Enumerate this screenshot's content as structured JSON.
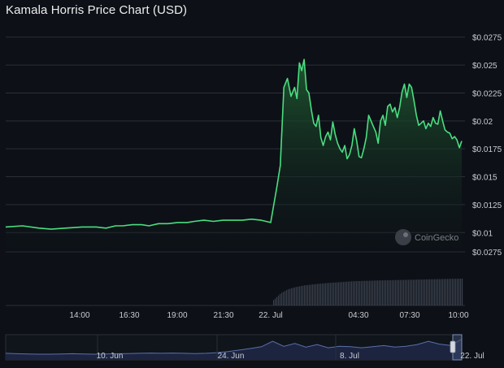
{
  "title": "Kamala Horris Price Chart (USD)",
  "watermark": "CoinGecko",
  "colors": {
    "background": "#0d1117",
    "line": "#4ade80",
    "area_top": "#1f5a30",
    "grid": "#2a2f36",
    "volume": "#3a414c",
    "navigator_line": "#5b6fa8",
    "navigator_fill": "#1c2440"
  },
  "chart_data": [
    {
      "type": "area",
      "title": "Kamala Horris Price Chart (USD)",
      "y_axis": {
        "position": "right",
        "ylim": [
          0.009,
          0.0285
        ],
        "ticks": [
          0.01,
          0.0125,
          0.015,
          0.0175,
          0.02,
          0.0225,
          0.025,
          0.0275
        ],
        "tick_labels": [
          "$0.01",
          "$0.0125",
          "$0.015",
          "$0.0175",
          "$0.02",
          "$0.0225",
          "$0.025",
          "$0.0275"
        ]
      },
      "x_axis": {
        "xlim": [
          10.5,
          29.6
        ],
        "ticks": [
          14.0,
          16.5,
          19.0,
          21.5,
          24.0,
          28.5
        ],
        "tick_labels": [
          "14:00",
          "16:30",
          "19:00",
          "21:30",
          "22. Jul",
          "04:30",
          "07:30",
          "10:00"
        ],
        "tick_label_hours": [
          14.0,
          16.5,
          19.0,
          21.5,
          24.0,
          28.5,
          31.5,
          34.0
        ]
      },
      "grid": true,
      "series": [
        {
          "x": [
            10.5,
            11.2,
            11.9,
            12.4,
            13.0,
            13.7,
            14.3,
            14.7,
            15.1,
            15.4,
            15.8,
            16.2,
            16.5,
            16.9,
            17.3,
            17.7,
            18.1,
            18.4,
            18.8,
            19.2,
            19.6,
            20.0,
            20.4,
            20.8,
            21.2,
            21.6,
            21.85,
            22.0,
            22.15,
            22.3,
            22.45,
            22.6,
            22.7,
            22.8,
            22.9,
            23.0,
            23.1,
            23.2,
            23.3,
            23.4,
            23.5,
            23.6,
            23.7,
            23.8,
            23.9,
            24.0,
            24.1,
            24.2,
            24.3,
            24.4,
            24.5,
            24.6,
            24.7,
            24.8,
            24.9,
            25.0,
            25.1,
            25.2,
            25.3,
            25.4,
            25.5,
            25.6,
            25.7,
            25.8,
            25.9,
            26.0,
            26.1,
            26.2,
            26.3,
            26.4,
            26.5,
            26.6,
            26.7,
            26.8,
            26.9,
            27.0,
            27.1,
            27.2,
            27.3,
            27.4,
            27.5,
            27.6,
            27.7,
            27.8,
            27.9,
            28.0,
            28.1,
            28.2,
            28.3,
            28.4,
            28.5,
            28.6,
            28.7,
            28.8,
            28.9,
            29.0,
            29.1,
            29.2,
            29.3,
            29.4,
            29.5,
            29.6
          ],
          "values": [
            0.0105,
            0.0106,
            0.0104,
            0.0103,
            0.0104,
            0.0105,
            0.0105,
            0.0104,
            0.0106,
            0.0106,
            0.0107,
            0.0107,
            0.0106,
            0.0108,
            0.0108,
            0.0109,
            0.0109,
            0.011,
            0.0111,
            0.011,
            0.0111,
            0.0111,
            0.0111,
            0.0112,
            0.0111,
            0.0109,
            0.014,
            0.016,
            0.023,
            0.0238,
            0.0222,
            0.023,
            0.022,
            0.0252,
            0.0245,
            0.0255,
            0.0228,
            0.0225,
            0.021,
            0.0198,
            0.0195,
            0.0205,
            0.0185,
            0.0178,
            0.0186,
            0.019,
            0.0183,
            0.0199,
            0.0188,
            0.018,
            0.0175,
            0.0172,
            0.0178,
            0.0166,
            0.017,
            0.0178,
            0.0193,
            0.0182,
            0.0168,
            0.0167,
            0.0175,
            0.0185,
            0.0205,
            0.02,
            0.0195,
            0.019,
            0.018,
            0.02,
            0.0205,
            0.0196,
            0.0213,
            0.0215,
            0.0208,
            0.0212,
            0.0203,
            0.0212,
            0.0226,
            0.0233,
            0.0221,
            0.0233,
            0.023,
            0.0218,
            0.0205,
            0.0196,
            0.0198,
            0.02,
            0.0193,
            0.0198,
            0.0195,
            0.0203,
            0.0198,
            0.0197,
            0.0209,
            0.02,
            0.0192,
            0.019,
            0.0189,
            0.0184,
            0.0186,
            0.0183,
            0.0176,
            0.0182
          ]
        }
      ]
    },
    {
      "type": "bar",
      "role": "volume",
      "note_units": "relative",
      "x": [
        21.7,
        22.0,
        22.3,
        22.6,
        23.0,
        23.5,
        24.0,
        24.5,
        25.0,
        26.0,
        27.0,
        28.0,
        29.0,
        29.6
      ],
      "values": [
        0.2,
        0.45,
        0.6,
        0.68,
        0.75,
        0.8,
        0.84,
        0.87,
        0.9,
        0.93,
        0.95,
        0.97,
        0.99,
        1.0
      ]
    },
    {
      "type": "line",
      "role": "navigator",
      "x_tick_labels": [
        "10. Jun",
        "24. Jun",
        "8. Jul",
        "22. Jul"
      ],
      "values": [
        0.3,
        0.28,
        0.27,
        0.26,
        0.26,
        0.27,
        0.28,
        0.27,
        0.26,
        0.27,
        0.28,
        0.29,
        0.3,
        0.31,
        0.3,
        0.31,
        0.3,
        0.29,
        0.3,
        0.33,
        0.38,
        0.45,
        0.52,
        0.6,
        0.85,
        0.62,
        0.75,
        0.58,
        0.7,
        0.55,
        0.62,
        0.6,
        0.55,
        0.6,
        0.65,
        0.58,
        0.62,
        0.7,
        0.85,
        0.72,
        0.66,
        0.95
      ]
    }
  ]
}
